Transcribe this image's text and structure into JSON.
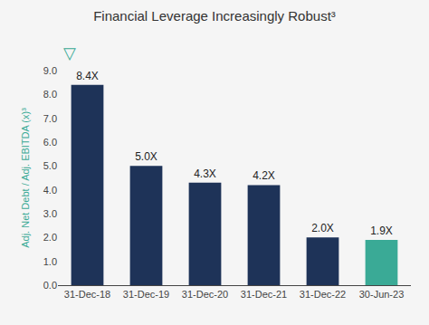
{
  "chart_data": {
    "type": "bar",
    "title": "Financial Leverage Increasingly Robust³",
    "ylabel": "Adj. Net Debt / Adj. EBITDA (x)³",
    "categories": [
      "31-Dec-18",
      "31-Dec-19",
      "31-Dec-20",
      "31-Dec-21",
      "31-Dec-22",
      "30-Jun-23"
    ],
    "values": [
      8.4,
      5.0,
      4.3,
      4.2,
      2.0,
      1.9
    ],
    "value_labels": [
      "8.4X",
      "5.0X",
      "4.3X",
      "4.2X",
      "2.0X",
      "1.9X"
    ],
    "data_labels": true,
    "colors": [
      "#1e3358",
      "#1e3358",
      "#1e3358",
      "#1e3358",
      "#1e3358",
      "#3aaa96"
    ],
    "ylim": [
      0,
      9.0
    ],
    "yticks": [
      {
        "value": 0.0,
        "label": "0.0"
      },
      {
        "value": 1.0,
        "label": "1.0"
      },
      {
        "value": 2.0,
        "label": "2.0"
      },
      {
        "value": 3.0,
        "label": "3.0"
      },
      {
        "value": 4.0,
        "label": "4.0"
      },
      {
        "value": 5.0,
        "label": "5.0"
      },
      {
        "value": 6.0,
        "label": "6.0"
      },
      {
        "value": 7.0,
        "label": "7.0"
      },
      {
        "value": 8.0,
        "label": "8.0"
      },
      {
        "value": 9.0,
        "label": "9.0"
      }
    ],
    "grid": false,
    "annotations": [
      "▽"
    ]
  }
}
